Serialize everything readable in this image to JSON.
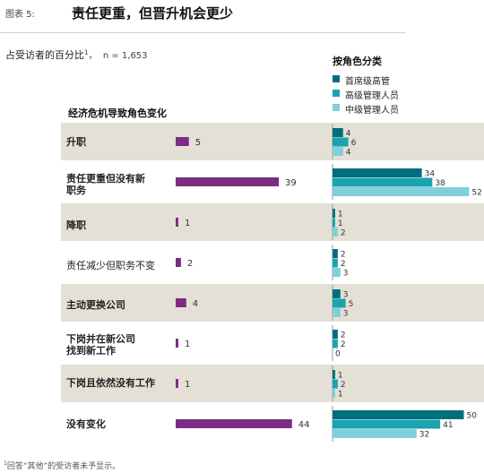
{
  "header": {
    "exhibit_label": "图表 5:",
    "title": "责任更重，但晋升机会更少"
  },
  "subtitle": {
    "text": "占受访者的百分比",
    "footnote_mark": "1",
    "n_text": "，  n = 1,653"
  },
  "section_heading": "经济危机导致角色变化",
  "right_heading": "按角色分类",
  "footnote": {
    "mark": "1",
    "text": "回答“其他”的受访者未予显示。"
  },
  "colors": {
    "total_bar": "#7b2c83",
    "senior": "#006f7d",
    "executive": "#1aa3b0",
    "middle": "#7fd0db",
    "row_shade": "#e4e0d6"
  },
  "chart_data": {
    "type": "bar",
    "orientation": "horizontal",
    "categories": [
      "升职",
      "责任更重但没有新职务",
      "降职",
      "责任减少但职务不变",
      "主动更换公司",
      "下岗并在新公司找到新工作",
      "下岗且依然没有工作",
      "没有变化"
    ],
    "category_lines": [
      [
        "升职"
      ],
      [
        "责任更重但没有新",
        "职务"
      ],
      [
        "降职"
      ],
      [
        "责任减少但职务不变"
      ],
      [
        "主动更换公司"
      ],
      [
        "下岗并在新公司",
        "找到新工作"
      ],
      [
        "下岗且依然没有工作"
      ],
      [
        "没有变化"
      ]
    ],
    "bold_categories": [
      0,
      1,
      2,
      4,
      5,
      6,
      7
    ],
    "total_values": [
      5,
      39,
      1,
      2,
      4,
      1,
      1,
      44
    ],
    "series": [
      {
        "name": "首席级高管",
        "values": [
          4,
          34,
          1,
          2,
          3,
          2,
          1,
          50
        ]
      },
      {
        "name": "高级管理人员",
        "values": [
          6,
          38,
          1,
          2,
          5,
          2,
          2,
          41
        ]
      },
      {
        "name": "中级管理人员",
        "values": [
          4,
          52,
          2,
          3,
          3,
          0,
          1,
          32
        ]
      }
    ],
    "xlim": [
      0,
      52
    ]
  }
}
